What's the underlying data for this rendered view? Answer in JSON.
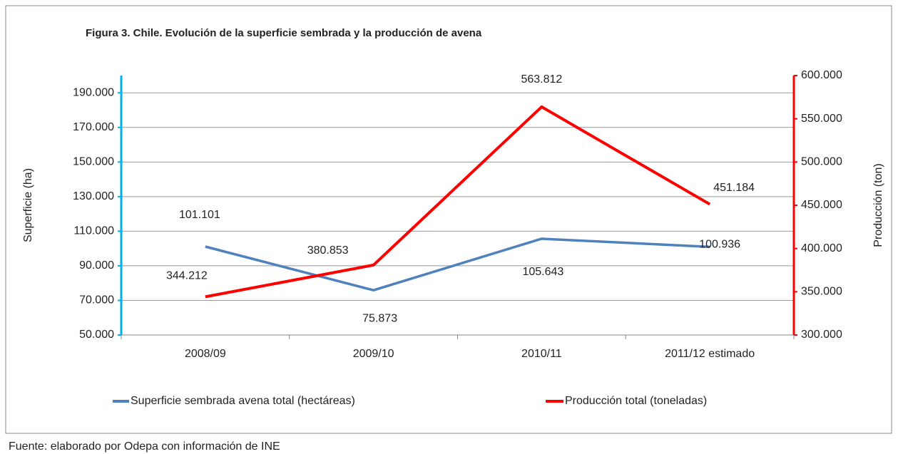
{
  "chart_data": {
    "type": "line",
    "title": "Figura  3. Chile.  Evolución  de la superficie sembrada y la producción  de avena",
    "ylabel": "Superficie (ha)",
    "y2label": "Producción  (ton)",
    "note": "Fuente: elaborado por Odepa con información de  INE",
    "categories": [
      "2008/09",
      "2009/10",
      "2010/11",
      "2011/12 estimado"
    ],
    "series": [
      {
        "name": "Superficie sembrada avena total (hectáreas)",
        "color": "#4f81bd",
        "axis": "y",
        "values": [
          101101,
          75873,
          105643,
          100936
        ],
        "value_labels": [
          "101.101",
          "75.873",
          "105.643",
          "100.936"
        ]
      },
      {
        "name": "Producción  total (toneladas)",
        "color": "#ff0000",
        "axis": "y2",
        "values": [
          344212,
          380853,
          563812,
          451184
        ],
        "value_labels": [
          "344.212",
          "380.853",
          "563.812",
          "451.184"
        ]
      }
    ],
    "ylim": [
      50000,
      200000
    ],
    "yticks": [
      {
        "value": 50000,
        "label": "50.000"
      },
      {
        "value": 70000,
        "label": "70.000"
      },
      {
        "value": 90000,
        "label": "90.000"
      },
      {
        "value": 110000,
        "label": "110.000"
      },
      {
        "value": 130000,
        "label": "130.000"
      },
      {
        "value": 150000,
        "label": "150.000"
      },
      {
        "value": 170000,
        "label": "170.000"
      },
      {
        "value": 190000,
        "label": "190.000"
      }
    ],
    "y2lim": [
      300000,
      600000
    ],
    "y2ticks": [
      {
        "value": 300000,
        "label": "300.000"
      },
      {
        "value": 350000,
        "label": "350.000"
      },
      {
        "value": 400000,
        "label": "400.000"
      },
      {
        "value": 450000,
        "label": "450.000"
      },
      {
        "value": 500000,
        "label": "500.000"
      },
      {
        "value": 550000,
        "label": "550.000"
      },
      {
        "value": 600000,
        "label": "600.000"
      }
    ],
    "grid": true,
    "legend": "bottom",
    "y_axis_color": "#00b0f0",
    "y2_axis_color": "#ff0000"
  }
}
